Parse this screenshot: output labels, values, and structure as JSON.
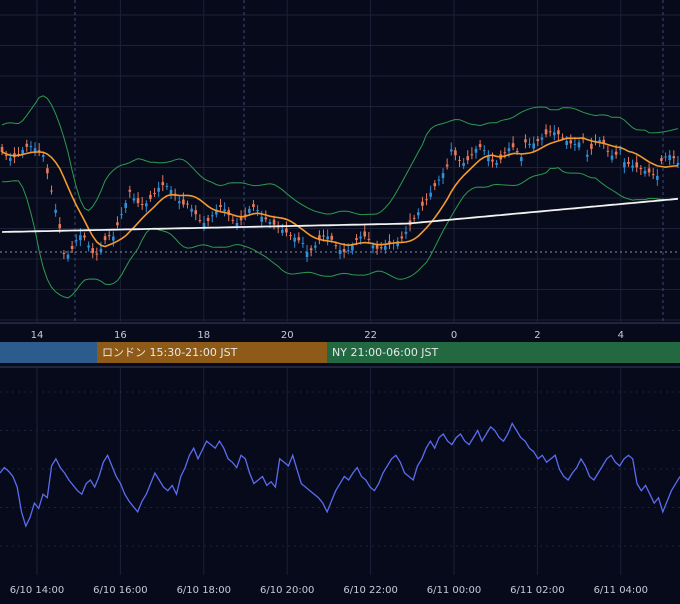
{
  "colors": {
    "background": "#070a1a",
    "grid": "#1b2138",
    "candle_up": "#2f8fd8",
    "candle_down": "#e8795a",
    "sma_short": "#f39a2e",
    "sma_long": "#f2f2f2",
    "bollinger": "#2e9a4e",
    "oscillator": "#5b6cf0",
    "divider": "#3a4060"
  },
  "price_axis_hours": [
    "14",
    "16",
    "18",
    "20",
    "22",
    "0",
    "2",
    "4"
  ],
  "sessions": [
    {
      "label": "",
      "color": "#2c5c8e"
    },
    {
      "label": "ロンドン 15:30-21:00 JST",
      "color": "#8e5a17"
    },
    {
      "label": "NY 21:00-06:00 JST",
      "color": "#226841"
    }
  ],
  "time_axis_labels": [
    "6/10 14:00",
    "6/10 16:00",
    "6/10 18:00",
    "6/10 20:00",
    "6/10 22:00",
    "6/11 00:00",
    "6/11 02:00",
    "6/11 04:00"
  ],
  "chart_data": [
    {
      "type": "candlestick",
      "x_axis": "hours JST (6/10 13:00 - 6/11 05:00)",
      "candles": [],
      "overlays": [
        "sma_short (orange)",
        "sma_long (white)",
        "bollinger_bands (green)"
      ],
      "grid": true
    },
    {
      "type": "line",
      "series": [
        {
          "values": [
            0.52,
            0.55,
            0.53,
            0.5,
            0.44,
            0.3,
            0.22,
            0.27,
            0.35,
            0.32,
            0.4,
            0.38,
            0.56,
            0.6,
            0.55,
            0.52,
            0.48,
            0.45,
            0.42,
            0.4,
            0.46,
            0.48,
            0.44,
            0.5,
            0.58,
            0.62,
            0.56,
            0.5,
            0.46,
            0.4,
            0.36,
            0.33,
            0.3,
            0.36,
            0.4,
            0.46,
            0.52,
            0.48,
            0.44,
            0.42,
            0.45,
            0.4,
            0.5,
            0.55,
            0.62,
            0.66,
            0.6,
            0.65,
            0.7,
            0.68,
            0.66,
            0.7,
            0.66,
            0.6,
            0.58,
            0.55,
            0.62,
            0.6,
            0.52,
            0.46,
            0.48,
            0.5,
            0.45,
            0.47,
            0.44,
            0.6,
            0.58,
            0.56,
            0.62,
            0.54,
            0.46,
            0.44,
            0.42,
            0.4,
            0.38,
            0.35,
            0.3,
            0.36,
            0.42,
            0.46,
            0.5,
            0.48,
            0.52,
            0.55,
            0.5,
            0.48,
            0.44,
            0.42,
            0.46,
            0.52,
            0.56,
            0.6,
            0.62,
            0.58,
            0.52,
            0.5,
            0.48,
            0.56,
            0.6,
            0.66,
            0.7,
            0.66,
            0.72,
            0.74,
            0.7,
            0.68,
            0.72,
            0.74,
            0.7,
            0.68,
            0.72,
            0.76,
            0.7,
            0.74,
            0.78,
            0.76,
            0.72,
            0.7,
            0.74,
            0.8,
            0.76,
            0.72,
            0.7,
            0.66,
            0.64,
            0.6,
            0.62,
            0.58,
            0.6,
            0.62,
            0.54,
            0.5,
            0.48,
            0.52,
            0.55,
            0.6,
            0.56,
            0.5,
            0.48,
            0.52,
            0.56,
            0.6,
            0.62,
            0.58,
            0.56,
            0.6,
            0.62,
            0.6,
            0.46,
            0.42,
            0.45,
            0.4,
            0.35,
            0.38,
            0.3,
            0.36,
            0.42,
            0.46,
            0.5
          ]
        }
      ],
      "ylim": [
        0,
        1
      ],
      "grid": true
    }
  ]
}
